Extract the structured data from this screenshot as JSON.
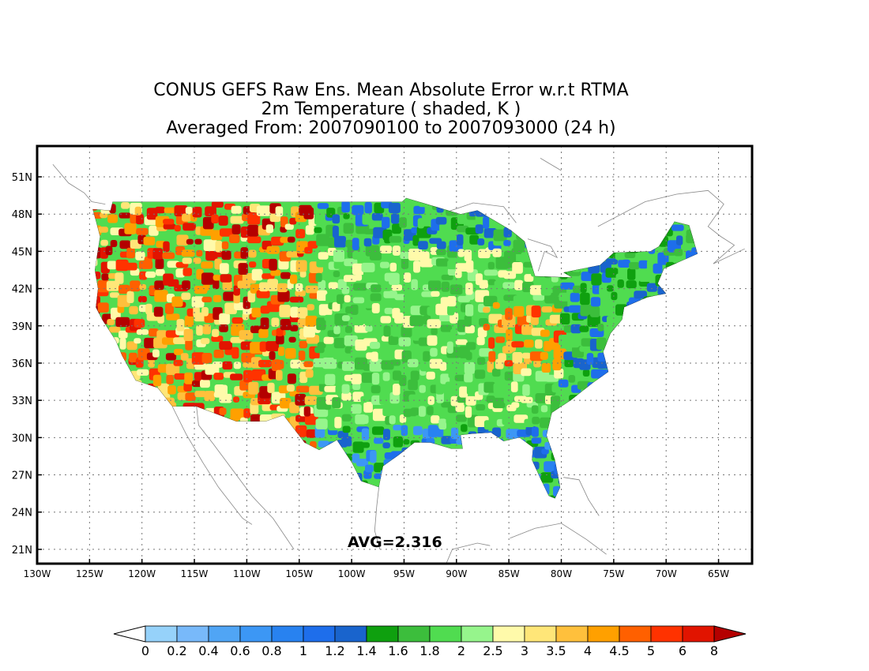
{
  "title_lines": [
    "CONUS GEFS Raw Ens. Mean Absolute Error w.r.t RTMA",
    "2m Temperature ( shaded, K )",
    "Averaged From: 2007090100 to 2007093000 (24 h)"
  ],
  "avg_label": "AVG=2.316",
  "axes": {
    "lat_labels": [
      "51N",
      "48N",
      "45N",
      "42N",
      "39N",
      "36N",
      "33N",
      "30N",
      "27N",
      "24N",
      "21N"
    ],
    "lat_values": [
      51,
      48,
      45,
      42,
      39,
      36,
      33,
      30,
      27,
      24,
      21
    ],
    "lon_labels": [
      "130W",
      "125W",
      "120W",
      "115W",
      "110W",
      "105W",
      "100W",
      "95W",
      "90W",
      "85W",
      "80W",
      "75W",
      "70W",
      "65W"
    ],
    "lon_values": [
      -130,
      -125,
      -120,
      -115,
      -110,
      -105,
      -100,
      -95,
      -90,
      -85,
      -80,
      -75,
      -70,
      -65
    ],
    "lon_range": [
      -130,
      -62
    ],
    "lat_range": [
      19.5,
      52.5
    ],
    "grid": true
  },
  "colorbar": {
    "labels": [
      "0",
      "0.2",
      "0.4",
      "0.6",
      "0.8",
      "1",
      "1.2",
      "1.4",
      "1.6",
      "1.8",
      "2",
      "2.5",
      "3",
      "3.5",
      "4",
      "4.5",
      "5",
      "6",
      "8"
    ],
    "colors": [
      "#ffffff",
      "#96d2fa",
      "#78b9fa",
      "#50a5f5",
      "#3c97f5",
      "#2882f0",
      "#1e6eeb",
      "#1964cd",
      "#0fa00f",
      "#3cbe3c",
      "#50dc50",
      "#96f58c",
      "#fffaaa",
      "#ffe678",
      "#ffc03c",
      "#ffa000",
      "#ff6000",
      "#ff3200",
      "#e11400",
      "#b40000"
    ],
    "extend": "both"
  },
  "chart_data": {
    "type": "heatmap",
    "title": "CONUS GEFS Raw Ens. Mean Absolute Error w.r.t RTMA",
    "variable": "2m Temperature ( shaded, K )",
    "period": "Averaged From: 2007090100 to 2007093000 (24 h)",
    "domain_average": 2.316,
    "x_range": [
      -130,
      -62
    ],
    "y_range": [
      19.5,
      52.5
    ],
    "levels": [
      0,
      0.2,
      0.4,
      0.6,
      0.8,
      1,
      1.2,
      1.4,
      1.6,
      1.8,
      2,
      2.5,
      3,
      3.5,
      4,
      4.5,
      5,
      6,
      8
    ]
  }
}
